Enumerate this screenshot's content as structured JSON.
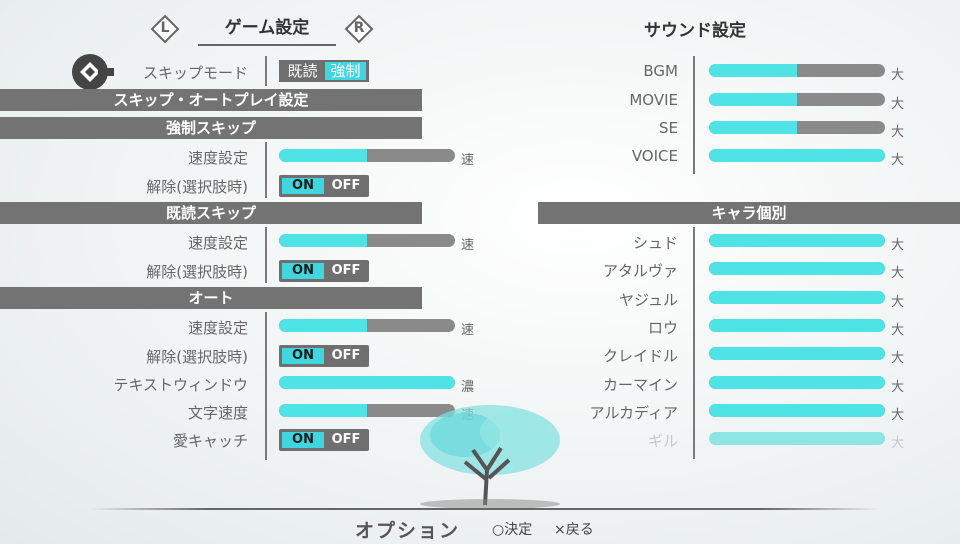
{
  "header": {
    "left_nav": "L",
    "right_nav": "R",
    "game_tab": "ゲーム設定",
    "sound_tab": "サウンド設定"
  },
  "skip_mode": {
    "label": "スキップモード",
    "option_read": "既読",
    "option_force": "強制"
  },
  "sections": {
    "skip_auto": "スキップ・オートプレイ設定",
    "force_skip": "強制スキップ",
    "read_skip": "既読スキップ",
    "auto": "オート",
    "character": "キャラ個別"
  },
  "toggle": {
    "on": "ON",
    "off": "OFF"
  },
  "game": {
    "force_speed": {
      "label": "速度設定",
      "end": "速",
      "value": 0.5
    },
    "force_cancel": {
      "label": "解除(選択肢時)"
    },
    "read_speed": {
      "label": "速度設定",
      "end": "速",
      "value": 0.5
    },
    "read_cancel": {
      "label": "解除(選択肢時)"
    },
    "auto_speed": {
      "label": "速度設定",
      "end": "速",
      "value": 0.5
    },
    "auto_cancel": {
      "label": "解除(選択肢時)"
    },
    "text_window": {
      "label": "テキストウィンドウ",
      "end": "濃",
      "value": 1.0
    },
    "char_speed": {
      "label": "文字速度",
      "end": "速",
      "value": 0.5
    },
    "eyecatch": {
      "label": "愛キャッチ"
    }
  },
  "sound": {
    "bgm": {
      "label": "BGM",
      "end": "大",
      "value": 0.5
    },
    "movie": {
      "label": "MOVIE",
      "end": "大",
      "value": 0.5
    },
    "se": {
      "label": "SE",
      "end": "大",
      "value": 0.5
    },
    "voice": {
      "label": "VOICE",
      "end": "大",
      "value": 1.0
    }
  },
  "characters": [
    {
      "label": "シュド",
      "end": "大",
      "value": 1.0
    },
    {
      "label": "アタルヴァ",
      "end": "大",
      "value": 1.0
    },
    {
      "label": "ヤジュル",
      "end": "大",
      "value": 1.0
    },
    {
      "label": "ロウ",
      "end": "大",
      "value": 1.0
    },
    {
      "label": "クレイドル",
      "end": "大",
      "value": 1.0
    },
    {
      "label": "カーマイン",
      "end": "大",
      "value": 1.0
    },
    {
      "label": "アルカディア",
      "end": "大",
      "value": 1.0
    },
    {
      "label": "ギル",
      "end": "大",
      "value": 1.0
    }
  ],
  "footer": {
    "title": "オプション",
    "confirm": "○決定",
    "back": "×戻る"
  },
  "colors": {
    "accent": "#4fe3e6",
    "header_bg": "#737373",
    "track": "#8a8a8a"
  }
}
